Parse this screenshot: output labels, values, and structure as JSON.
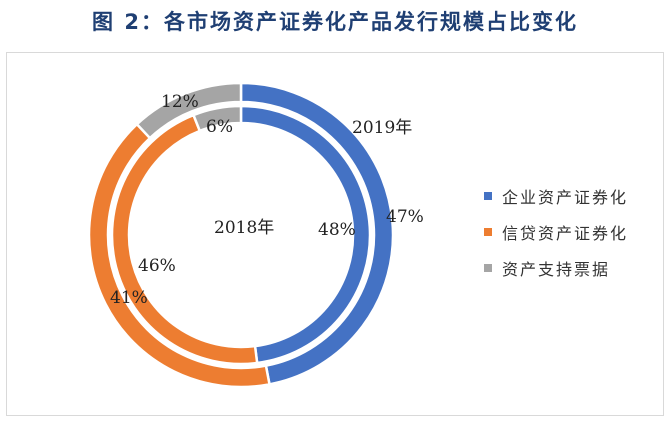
{
  "figure": {
    "title": "图 2：各市场资产证券化产品发行规模占比变化"
  },
  "colors": {
    "corporate": "#4472c4",
    "credit": "#ed7d31",
    "abn": "#a5a5a5"
  },
  "chart_data": {
    "type": "pie",
    "variant": "double-ring-donut",
    "title": "图 2：各市场资产证券化产品发行规模占比变化",
    "categories": [
      "企业资产证券化",
      "信贷资产证券化",
      "资产支持票据"
    ],
    "series": [
      {
        "name": "2018年",
        "ring": "inner",
        "values": [
          48,
          46,
          6
        ],
        "labels": [
          "48%",
          "46%",
          "6%"
        ]
      },
      {
        "name": "2019年",
        "ring": "outer",
        "values": [
          47,
          41,
          12
        ],
        "labels": [
          "47%",
          "41%",
          "12%"
        ]
      }
    ],
    "legend": {
      "position": "right",
      "items": [
        "企业资产证券化",
        "信贷资产证券化",
        "资产支持票据"
      ]
    }
  }
}
